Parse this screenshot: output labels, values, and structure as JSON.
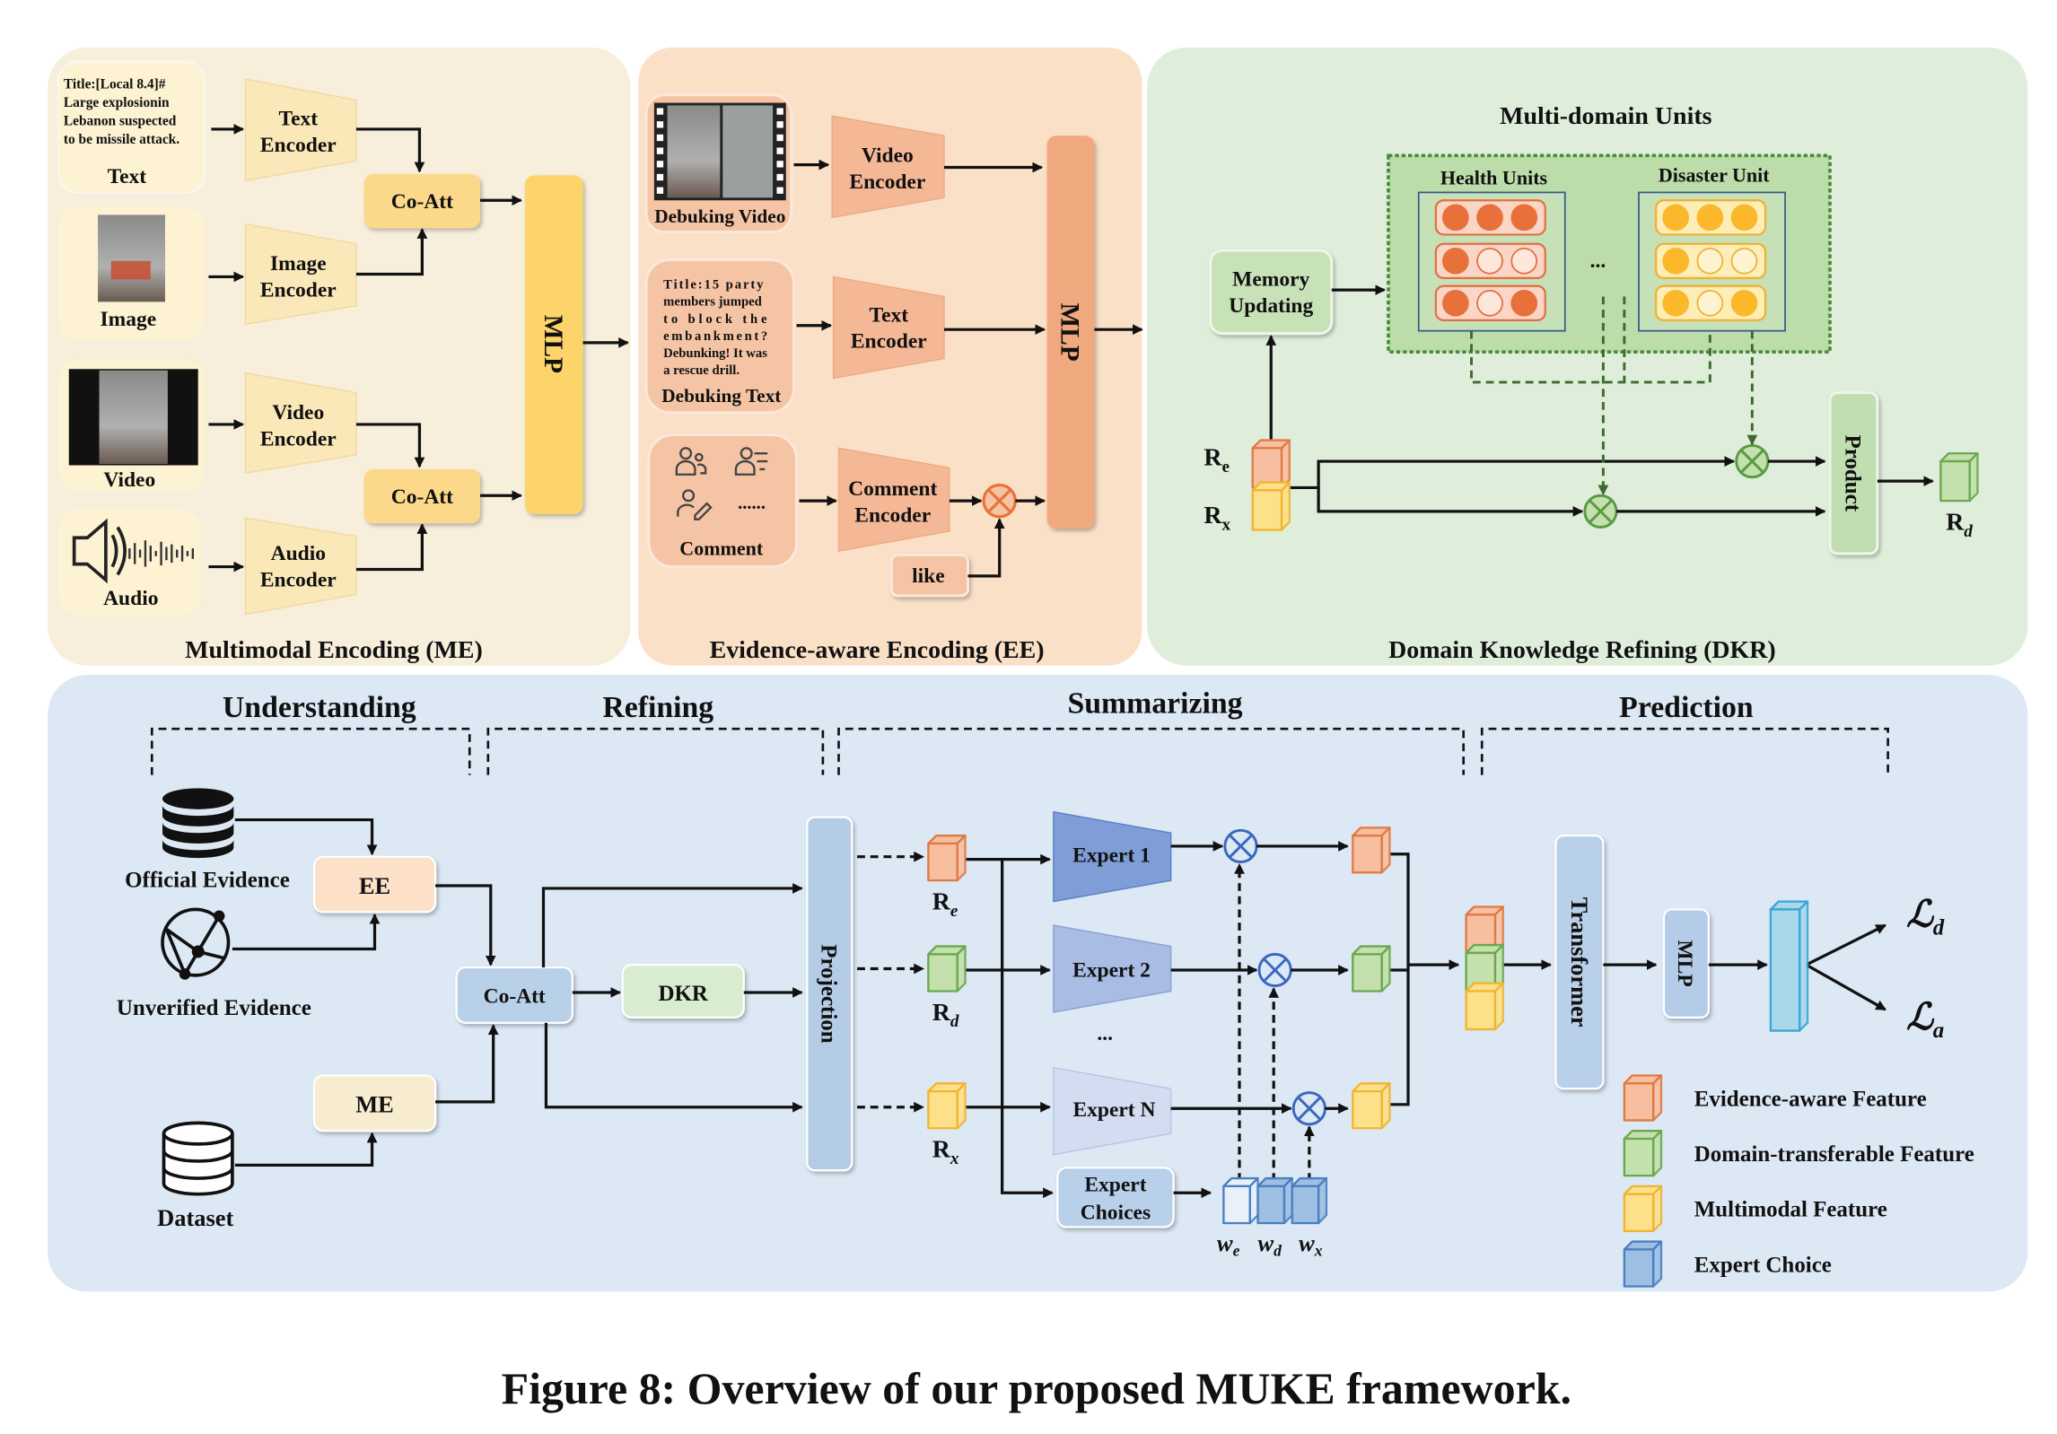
{
  "caption": "Figure 8: Overview of our proposed MUKE framework.",
  "me": {
    "title": "Multimodal Encoding (ME)",
    "text_card": {
      "lines": [
        "Title:[Local 8.4]#",
        "Large explosionin",
        "Lebanon suspected",
        "to be missile attack."
      ],
      "label": "Text"
    },
    "image_label": "Image",
    "video_label": "Video",
    "audio_label": "Audio",
    "text_encoder": [
      "Text",
      "Encoder"
    ],
    "image_encoder": [
      "Image",
      "Encoder"
    ],
    "video_encoder": [
      "Video",
      "Encoder"
    ],
    "audio_encoder": [
      "Audio",
      "Encoder"
    ],
    "coatt": "Co-Att",
    "mlp": "MLP"
  },
  "ee": {
    "title": "Evidence-aware Encoding (EE)",
    "video_label": "Debuking Video",
    "text_card": {
      "lines": [
        "Title:15 party",
        "members jumped",
        "to block the",
        "embankment?",
        "Debunking! It was",
        "a rescue drill."
      ],
      "label": "Debuking Text"
    },
    "comment_label": "Comment",
    "comment_dots": "......",
    "video_encoder": [
      "Video",
      "Encoder"
    ],
    "text_encoder": [
      "Text",
      "Encoder"
    ],
    "comment_encoder": [
      "Comment",
      "Encoder"
    ],
    "like": "like",
    "mlp": "MLP"
  },
  "dkr": {
    "title": "Domain Knowledge Refining (DKR)",
    "units_title": "Multi-domain Units",
    "health_units": "Health  Units",
    "disaster_unit": "Disaster Unit",
    "ellipsis": "...",
    "memory_updating": [
      "Memory",
      "Updating"
    ],
    "product": "Product",
    "re": {
      "main": "R",
      "sub": "e"
    },
    "rx": {
      "main": "R",
      "sub": "x"
    },
    "rd": {
      "main": "R",
      "sub": "d"
    }
  },
  "bottom": {
    "stages": [
      "Understanding",
      "Refining",
      "Summarizing",
      "Prediction"
    ],
    "official_evidence": "Official Evidence",
    "unverified_evidence": "Unverified Evidence",
    "dataset": "Dataset",
    "ee": "EE",
    "me": "ME",
    "coatt": "Co-Att",
    "dkr": "DKR",
    "projection": "Projection",
    "re": {
      "main": "R",
      "sub": "e"
    },
    "rd": {
      "main": "R",
      "sub": "d"
    },
    "rx": {
      "main": "R",
      "sub": "x"
    },
    "experts": [
      "Expert 1",
      "Expert 2",
      "Expert N"
    ],
    "expert_ellipsis": "...",
    "expert_choices": [
      "Expert",
      "Choices"
    ],
    "weights": [
      {
        "main": "w",
        "sub": "e"
      },
      {
        "main": "w",
        "sub": "d"
      },
      {
        "main": "w",
        "sub": "x"
      }
    ],
    "transformer": "Transformer",
    "mlp": "MLP",
    "loss_d": {
      "main": "ℒ",
      "sub": "d"
    },
    "loss_a": {
      "main": "ℒ",
      "sub": "a"
    }
  },
  "legend": [
    {
      "label": "Evidence-aware Feature",
      "color": "#f7bfa0"
    },
    {
      "label": "Domain-transferable Feature",
      "color": "#c3e0ad"
    },
    {
      "label": "Multimodal Feature",
      "color": "#fde08a"
    },
    {
      "label": "Expert Choice",
      "color": "#9dbfe4"
    }
  ],
  "colors": {
    "me_panel": "#f7eedb",
    "ee_panel": "#fbe0c8",
    "dkr_panel": "#dfeedb",
    "bottom_panel": "#dce8f4"
  }
}
